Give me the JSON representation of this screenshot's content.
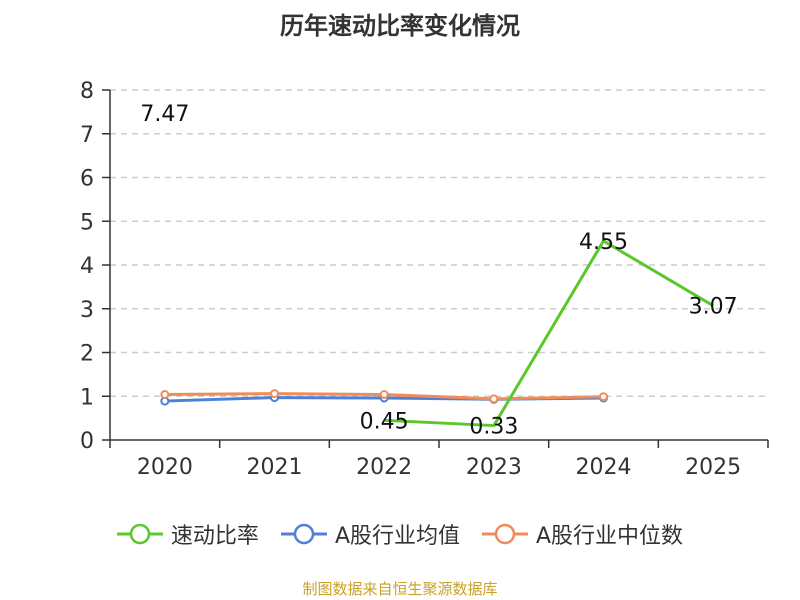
{
  "chart_data": {
    "type": "line",
    "title": "历年速动比率变化情况",
    "categories": [
      "2020",
      "2021",
      "2022",
      "2023",
      "2024",
      "2025"
    ],
    "ylim": [
      0,
      8
    ],
    "yticks": [
      0,
      1,
      2,
      3,
      4,
      5,
      6,
      7,
      8
    ],
    "grid": true,
    "legend_position": "bottom",
    "series": [
      {
        "name": "速动比率",
        "color": "#5cc72a",
        "values": [
          7.47,
          null,
          0.45,
          0.33,
          4.55,
          3.07
        ],
        "labels": [
          "7.47",
          "",
          "0.45",
          "0.33",
          "4.55",
          "3.07"
        ]
      },
      {
        "name": "A股行业均值",
        "color": "#4f7fd8",
        "values": [
          0.89,
          0.97,
          0.96,
          0.93,
          0.96,
          null
        ]
      },
      {
        "name": "A股行业中位数",
        "color": "#f08c5a",
        "values": [
          1.04,
          1.06,
          1.04,
          0.94,
          0.99,
          null
        ]
      }
    ]
  },
  "source_note": "制图数据来自恒生聚源数据库"
}
